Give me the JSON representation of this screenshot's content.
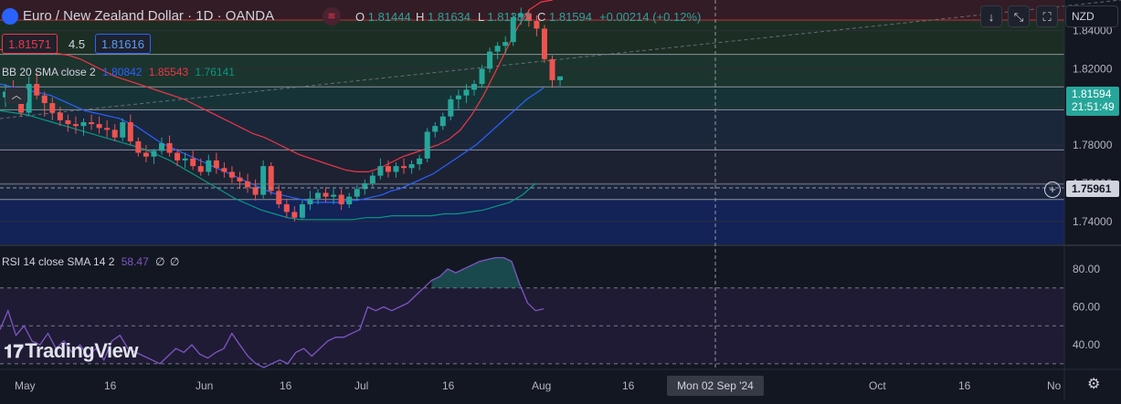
{
  "header": {
    "symbol_title": "Euro / New Zealand Dollar · 1D · OANDA",
    "open_label": "O",
    "open": "1.81444",
    "high_label": "H",
    "high": "1.81634",
    "low_label": "L",
    "low": "1.81382",
    "close_label": "C",
    "close": "1.81594",
    "change": "+0.00214 (+0.12%)",
    "sell_price": "1.81571",
    "spread": "4.5",
    "buy_price": "1.81616",
    "currency": "NZD"
  },
  "indicators": {
    "bb": {
      "label": "BB 20 SMA close 2",
      "basis": "1.80842",
      "upper": "1.85543",
      "lower": "1.76141"
    },
    "rsi": {
      "label": "RSI 14 close SMA 14 2",
      "value": "58.47",
      "extra1": "∅",
      "extra2": "∅"
    }
  },
  "price_axis": {
    "last_price": "1.81594",
    "countdown": "21:51:49",
    "marker_price": "1.75961",
    "hidden_tick": "1.82000"
  },
  "time_axis": {
    "labels": [
      "May",
      "16",
      "Jun",
      "16",
      "Jul",
      "16",
      "Aug",
      "16",
      "Oct",
      "16",
      "No"
    ],
    "crosshair_label": "Mon 02 Sep '24"
  },
  "watermark": "TradingView",
  "colors": {
    "up": "#26a69a",
    "down": "#ef5350",
    "bb_basis": "#2962ff",
    "bb_upper": "#f23645",
    "bb_lower": "#089981",
    "rsi": "#7e57c2"
  },
  "icons": [
    "chevron-up-icon",
    "arrow-down-icon",
    "collapse-icon",
    "expand-icon",
    "fullscreen-icon",
    "plus-circle-icon",
    "settings-icon",
    "tradingview-logo-icon"
  ],
  "chart_data": [
    {
      "type": "candlestick",
      "title": "Euro / New Zealand Dollar · 1D · OANDA",
      "x_axis": {
        "ticks": [
          "May",
          "16",
          "Jun",
          "16",
          "Jul",
          "16",
          "Aug",
          "16",
          "Oct",
          "16",
          "No"
        ]
      },
      "y_axis": {
        "ticks": [
          1.74,
          1.76,
          1.78,
          1.8,
          1.82,
          1.84
        ],
        "range": [
          1.728,
          1.856
        ]
      },
      "grid": true,
      "horizontal_levels": [
        1.8455,
        1.8275,
        1.8105,
        1.7985,
        1.7775,
        1.7596,
        1.7515
      ],
      "candles_ohlc": [
        [
          1.805,
          1.812,
          1.8,
          1.808
        ],
        [
          1.808,
          1.814,
          1.803,
          1.804
        ],
        [
          1.804,
          1.806,
          1.795,
          1.797
        ],
        [
          1.797,
          1.816,
          1.795,
          1.812
        ],
        [
          1.812,
          1.818,
          1.804,
          1.806
        ],
        [
          1.806,
          1.808,
          1.795,
          1.802
        ],
        [
          1.802,
          1.805,
          1.793,
          1.797
        ],
        [
          1.797,
          1.8,
          1.79,
          1.793
        ],
        [
          1.793,
          1.796,
          1.787,
          1.791
        ],
        [
          1.791,
          1.795,
          1.786,
          1.79
        ],
        [
          1.79,
          1.794,
          1.785,
          1.792
        ],
        [
          1.792,
          1.796,
          1.788,
          1.791
        ],
        [
          1.791,
          1.795,
          1.786,
          1.789
        ],
        [
          1.789,
          1.793,
          1.784,
          1.788
        ],
        [
          1.788,
          1.791,
          1.782,
          1.784
        ],
        [
          1.784,
          1.794,
          1.782,
          1.792
        ],
        [
          1.792,
          1.796,
          1.78,
          1.782
        ],
        [
          1.782,
          1.784,
          1.774,
          1.776
        ],
        [
          1.776,
          1.78,
          1.771,
          1.774
        ],
        [
          1.774,
          1.778,
          1.77,
          1.777
        ],
        [
          1.777,
          1.784,
          1.775,
          1.781
        ],
        [
          1.781,
          1.785,
          1.774,
          1.776
        ],
        [
          1.776,
          1.778,
          1.769,
          1.772
        ],
        [
          1.772,
          1.776,
          1.768,
          1.773
        ],
        [
          1.773,
          1.777,
          1.767,
          1.769
        ],
        [
          1.769,
          1.773,
          1.764,
          1.766
        ],
        [
          1.766,
          1.775,
          1.764,
          1.772
        ],
        [
          1.772,
          1.776,
          1.765,
          1.768
        ],
        [
          1.768,
          1.771,
          1.763,
          1.766
        ],
        [
          1.766,
          1.769,
          1.76,
          1.763
        ],
        [
          1.763,
          1.766,
          1.757,
          1.761
        ],
        [
          1.761,
          1.765,
          1.755,
          1.758
        ],
        [
          1.758,
          1.762,
          1.751,
          1.754
        ],
        [
          1.754,
          1.772,
          1.752,
          1.769
        ],
        [
          1.769,
          1.771,
          1.754,
          1.756
        ],
        [
          1.756,
          1.759,
          1.747,
          1.749
        ],
        [
          1.749,
          1.752,
          1.742,
          1.745
        ],
        [
          1.745,
          1.748,
          1.74,
          1.742
        ],
        [
          1.742,
          1.751,
          1.741,
          1.749
        ],
        [
          1.749,
          1.756,
          1.746,
          1.752
        ],
        [
          1.752,
          1.757,
          1.749,
          1.755
        ],
        [
          1.755,
          1.758,
          1.75,
          1.753
        ],
        [
          1.753,
          1.757,
          1.749,
          1.754
        ],
        [
          1.754,
          1.757,
          1.746,
          1.749
        ],
        [
          1.749,
          1.755,
          1.747,
          1.753
        ],
        [
          1.753,
          1.759,
          1.751,
          1.757
        ],
        [
          1.757,
          1.762,
          1.754,
          1.76
        ],
        [
          1.76,
          1.766,
          1.758,
          1.764
        ],
        [
          1.764,
          1.773,
          1.762,
          1.769
        ],
        [
          1.769,
          1.772,
          1.763,
          1.766
        ],
        [
          1.766,
          1.771,
          1.763,
          1.769
        ],
        [
          1.769,
          1.773,
          1.765,
          1.768
        ],
        [
          1.768,
          1.772,
          1.765,
          1.77
        ],
        [
          1.77,
          1.775,
          1.767,
          1.773
        ],
        [
          1.773,
          1.789,
          1.771,
          1.787
        ],
        [
          1.787,
          1.792,
          1.784,
          1.79
        ],
        [
          1.79,
          1.797,
          1.788,
          1.795
        ],
        [
          1.795,
          1.806,
          1.793,
          1.804
        ],
        [
          1.804,
          1.809,
          1.799,
          1.806
        ],
        [
          1.806,
          1.812,
          1.802,
          1.809
        ],
        [
          1.809,
          1.814,
          1.806,
          1.812
        ],
        [
          1.812,
          1.822,
          1.81,
          1.82
        ],
        [
          1.82,
          1.831,
          1.818,
          1.829
        ],
        [
          1.829,
          1.834,
          1.825,
          1.832
        ],
        [
          1.832,
          1.837,
          1.828,
          1.834
        ],
        [
          1.834,
          1.849,
          1.832,
          1.847
        ],
        [
          1.847,
          1.852,
          1.843,
          1.849
        ],
        [
          1.849,
          1.851,
          1.842,
          1.845
        ],
        [
          1.845,
          1.848,
          1.837,
          1.841
        ],
        [
          1.841,
          1.843,
          1.823,
          1.825
        ],
        [
          1.825,
          1.827,
          1.81,
          1.814
        ],
        [
          1.814,
          1.816,
          1.811,
          1.816
        ]
      ],
      "series": [
        {
          "name": "BB basis",
          "values": [
            1.812,
            1.811,
            1.81,
            1.809,
            1.808,
            1.807,
            1.806,
            1.804,
            1.802,
            1.8,
            1.798,
            1.797,
            1.796,
            1.795,
            1.794,
            1.792,
            1.79,
            1.787,
            1.784,
            1.781,
            1.779,
            1.777,
            1.775,
            1.773,
            1.771,
            1.769,
            1.767,
            1.765,
            1.763,
            1.761,
            1.759,
            1.757,
            1.755,
            1.754,
            1.753,
            1.752,
            1.751,
            1.75,
            1.75,
            1.75,
            1.75,
            1.751,
            1.751,
            1.752,
            1.753,
            1.754,
            1.756,
            1.757,
            1.759,
            1.761,
            1.763,
            1.765,
            1.768,
            1.771,
            1.774,
            1.777,
            1.78,
            1.784,
            1.788,
            1.792,
            1.796,
            1.8,
            1.804,
            1.807,
            1.81
          ]
        },
        {
          "name": "BB upper",
          "values": [
            1.83,
            1.83,
            1.829,
            1.829,
            1.829,
            1.828,
            1.827,
            1.825,
            1.822,
            1.819,
            1.816,
            1.814,
            1.812,
            1.81,
            1.808,
            1.806,
            1.804,
            1.801,
            1.798,
            1.795,
            1.792,
            1.789,
            1.786,
            1.784,
            1.781,
            1.778,
            1.775,
            1.773,
            1.771,
            1.769,
            1.767,
            1.766,
            1.766,
            1.768,
            1.771,
            1.774,
            1.776,
            1.778,
            1.78,
            1.783,
            1.788,
            1.796,
            1.806,
            1.818,
            1.83,
            1.842,
            1.851,
            1.855,
            1.856
          ]
        },
        {
          "name": "BB lower",
          "values": [
            1.798,
            1.797,
            1.796,
            1.794,
            1.792,
            1.79,
            1.788,
            1.786,
            1.784,
            1.782,
            1.78,
            1.778,
            1.775,
            1.772,
            1.768,
            1.764,
            1.76,
            1.756,
            1.752,
            1.749,
            1.746,
            1.744,
            1.742,
            1.741,
            1.741,
            1.741,
            1.741,
            1.741,
            1.742,
            1.742,
            1.743,
            1.743,
            1.743,
            1.743,
            1.744,
            1.744,
            1.745,
            1.746,
            1.748,
            1.75,
            1.754,
            1.76
          ]
        },
        {
          "name": "RSI",
          "values": [
            48,
            58,
            45,
            50,
            42,
            40,
            46,
            38,
            42,
            36,
            40,
            34,
            38,
            32,
            42,
            45,
            38,
            36,
            34,
            32,
            30,
            34,
            38,
            36,
            40,
            35,
            33,
            36,
            38,
            46,
            40,
            34,
            30,
            28,
            30,
            32,
            30,
            36,
            38,
            34,
            38,
            42,
            44,
            44,
            46,
            48,
            60,
            58,
            60,
            58,
            60,
            62,
            66,
            70,
            74,
            76,
            80,
            78,
            80,
            82,
            84,
            85,
            86,
            86,
            84,
            72,
            62,
            58,
            59
          ]
        }
      ]
    },
    {
      "type": "line",
      "title": "RSI 14 close SMA 14 2",
      "y_axis": {
        "ticks": [
          40,
          60,
          80
        ],
        "range": [
          28,
          92
        ]
      },
      "bands": [
        30,
        50,
        70
      ]
    }
  ]
}
